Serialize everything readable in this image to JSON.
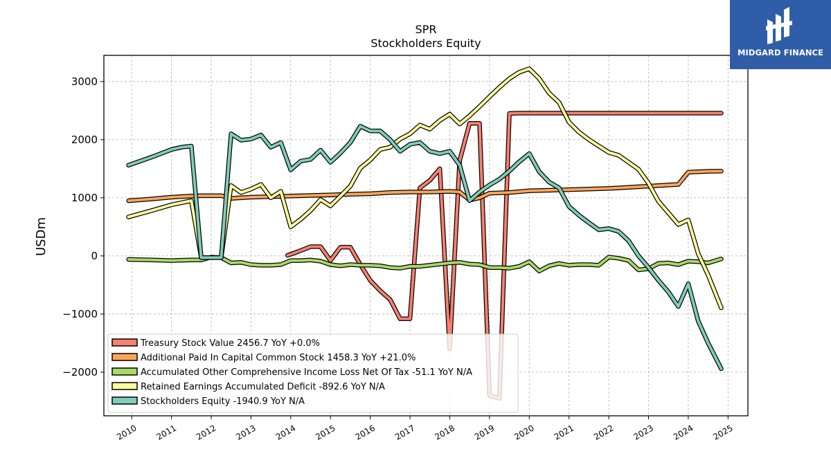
{
  "chart_data": {
    "type": "line",
    "title": "SPR",
    "subtitle": "Stockholders  Equity",
    "ylabel": "USDm",
    "xlabel": "",
    "xlim": [
      2009.3,
      2025.5
    ],
    "ylim": [
      -2750,
      3450
    ],
    "xticks": [
      2010,
      2011,
      2012,
      2013,
      2014,
      2015,
      2016,
      2017,
      2018,
      2019,
      2020,
      2021,
      2022,
      2023,
      2024,
      2025
    ],
    "xtick_labels": [
      "2010",
      "2011",
      "2012",
      "2013",
      "2014",
      "2015",
      "2016",
      "2017",
      "2018",
      "2019",
      "2020",
      "2021",
      "2022",
      "2023",
      "2024",
      "2025"
    ],
    "yticks": [
      -2000,
      -1000,
      0,
      1000,
      2000,
      3000
    ],
    "ytick_labels": [
      "−2000",
      "−1000",
      "0",
      "1000",
      "2000",
      "3000"
    ],
    "grid": true,
    "legend_position": "lower-left",
    "series": [
      {
        "name": "Treasury Stock Value",
        "legend": "Treasury Stock Value  2456.7 YoY +0.0%",
        "color": "#f8806f",
        "x": [
          2013.92,
          2014.17,
          2014.5,
          2014.75,
          2015.0,
          2015.25,
          2015.5,
          2015.75,
          2016.0,
          2016.25,
          2016.5,
          2016.75,
          2017.0,
          2017.25,
          2017.5,
          2017.75,
          2018.0,
          2018.25,
          2018.5,
          2018.75,
          2019.0,
          2019.25,
          2019.5,
          2019.75,
          2020.0,
          2020.5,
          2021.0,
          2021.5,
          2022.0,
          2022.5,
          2023.0,
          2023.5,
          2024.0,
          2024.5,
          2024.83
        ],
        "y": [
          10,
          70,
          160,
          160,
          -80,
          150,
          150,
          -150,
          -420,
          -600,
          -750,
          -1080,
          -1080,
          1170,
          1300,
          1500,
          -1600,
          1640,
          2280,
          2280,
          -2400,
          -2450,
          2450,
          2456,
          2456,
          2456,
          2456,
          2456,
          2456,
          2456,
          2456,
          2456,
          2456,
          2456,
          2456.7
        ]
      },
      {
        "name": "Additional Paid In Capital Common Stock",
        "legend": "Additional Paid In Capital Common Stock  1458.3 YoY +21.0%",
        "color": "#f9a65a",
        "x": [
          2009.92,
          2010.5,
          2011.0,
          2011.5,
          2011.75,
          2012.0,
          2012.25,
          2012.5,
          2013.0,
          2013.5,
          2014.0,
          2014.5,
          2015.0,
          2015.5,
          2016.0,
          2016.5,
          2017.0,
          2017.5,
          2018.0,
          2018.25,
          2018.5,
          2018.75,
          2019.0,
          2019.5,
          2020.0,
          2020.5,
          2021.0,
          2021.5,
          2022.0,
          2022.5,
          2023.0,
          2023.5,
          2023.75,
          2024.0,
          2024.5,
          2024.83
        ],
        "y": [
          950,
          980,
          1010,
          1030,
          1035,
          1035,
          1035,
          990,
          1010,
          1020,
          1030,
          1040,
          1050,
          1060,
          1070,
          1090,
          1100,
          1100,
          1110,
          1100,
          960,
          1000,
          1080,
          1090,
          1120,
          1130,
          1140,
          1150,
          1160,
          1180,
          1200,
          1220,
          1230,
          1440,
          1455,
          1458.3
        ]
      },
      {
        "name": "Accumulated Other Comprehensive Income Loss Net Of Tax",
        "legend": "Accumulated Other Comprehensive Income Loss Net Of Tax  -51.1 YoY N/A",
        "color": "#a8d968",
        "x": [
          2009.92,
          2010.5,
          2011.0,
          2011.5,
          2011.75,
          2012.0,
          2012.25,
          2012.5,
          2012.75,
          2013.0,
          2013.25,
          2013.5,
          2013.75,
          2014.0,
          2014.25,
          2014.5,
          2014.75,
          2015.0,
          2015.25,
          2015.5,
          2015.75,
          2016.0,
          2016.25,
          2016.5,
          2016.75,
          2017.0,
          2017.25,
          2017.5,
          2017.75,
          2018.0,
          2018.25,
          2018.5,
          2018.75,
          2019.0,
          2019.25,
          2019.5,
          2019.75,
          2020.0,
          2020.25,
          2020.5,
          2020.75,
          2021.0,
          2021.25,
          2021.5,
          2021.75,
          2022.0,
          2022.25,
          2022.5,
          2022.75,
          2023.0,
          2023.25,
          2023.5,
          2023.75,
          2024.0,
          2024.25,
          2024.5,
          2024.83
        ],
        "y": [
          -60,
          -70,
          -80,
          -70,
          -70,
          -20,
          -30,
          -120,
          -110,
          -150,
          -160,
          -160,
          -150,
          -80,
          -80,
          -70,
          -90,
          -150,
          -170,
          -150,
          -160,
          -160,
          -170,
          -200,
          -210,
          -180,
          -180,
          -160,
          -140,
          -120,
          -110,
          -140,
          -150,
          -200,
          -200,
          -210,
          -180,
          -100,
          -260,
          -170,
          -130,
          -160,
          -150,
          -150,
          -160,
          -20,
          -40,
          -80,
          -240,
          -220,
          -130,
          -120,
          -150,
          -90,
          -100,
          -120,
          -51.1
        ]
      },
      {
        "name": "Retained Earnings Accumulated Deficit",
        "legend": "Retained Earnings Accumulated Deficit  -892.6 YoY N/A",
        "color": "#fdfa9e",
        "x": [
          2009.92,
          2010.5,
          2011.0,
          2011.5,
          2011.75,
          2012.0,
          2012.25,
          2012.5,
          2012.75,
          2013.0,
          2013.25,
          2013.5,
          2013.75,
          2014.0,
          2014.25,
          2014.5,
          2014.75,
          2015.0,
          2015.25,
          2015.5,
          2015.75,
          2016.0,
          2016.25,
          2016.5,
          2016.75,
          2017.0,
          2017.25,
          2017.5,
          2017.75,
          2018.0,
          2018.25,
          2018.5,
          2018.75,
          2019.0,
          2019.25,
          2019.5,
          2019.75,
          2020.0,
          2020.25,
          2020.5,
          2020.75,
          2021.0,
          2021.25,
          2021.5,
          2021.75,
          2022.0,
          2022.25,
          2022.5,
          2022.75,
          2023.0,
          2023.25,
          2023.5,
          2023.75,
          2024.0,
          2024.25,
          2024.5,
          2024.83
        ],
        "y": [
          670,
          780,
          880,
          950,
          -30,
          -30,
          -30,
          1210,
          1090,
          1150,
          1230,
          1000,
          1110,
          500,
          630,
          780,
          970,
          860,
          1030,
          1200,
          1510,
          1650,
          1830,
          1870,
          2010,
          2100,
          2250,
          2180,
          2330,
          2440,
          2270,
          2410,
          2570,
          2740,
          2900,
          3050,
          3160,
          3220,
          3050,
          2800,
          2640,
          2300,
          2130,
          2000,
          1890,
          1780,
          1730,
          1610,
          1490,
          1250,
          940,
          740,
          540,
          620,
          40,
          -330,
          -892.6
        ]
      },
      {
        "name": "Stockholders Equity",
        "legend": "Stockholders Equity  -1940.9 YoY N/A",
        "color": "#7fcdbb",
        "x": [
          2009.92,
          2010.5,
          2011.0,
          2011.25,
          2011.5,
          2011.75,
          2012.0,
          2012.25,
          2012.5,
          2012.75,
          2013.0,
          2013.25,
          2013.5,
          2013.75,
          2014.0,
          2014.25,
          2014.5,
          2014.75,
          2015.0,
          2015.25,
          2015.5,
          2015.75,
          2016.0,
          2016.25,
          2016.5,
          2016.75,
          2017.0,
          2017.25,
          2017.5,
          2017.75,
          2018.0,
          2018.25,
          2018.5,
          2018.75,
          2019.0,
          2019.25,
          2019.5,
          2019.75,
          2020.0,
          2020.25,
          2020.5,
          2020.75,
          2021.0,
          2021.25,
          2021.5,
          2021.75,
          2022.0,
          2022.25,
          2022.5,
          2022.75,
          2023.0,
          2023.25,
          2023.5,
          2023.75,
          2024.0,
          2024.25,
          2024.5,
          2024.83
        ],
        "y": [
          1560,
          1700,
          1830,
          1870,
          1890,
          -30,
          -30,
          -30,
          2100,
          1990,
          2010,
          2080,
          1870,
          1950,
          1480,
          1630,
          1660,
          1820,
          1610,
          1770,
          1950,
          2230,
          2150,
          2150,
          2000,
          1800,
          1920,
          1950,
          1800,
          1760,
          1800,
          1560,
          950,
          1100,
          1220,
          1320,
          1460,
          1620,
          1760,
          1450,
          1270,
          1170,
          850,
          700,
          570,
          450,
          470,
          420,
          260,
          0,
          -200,
          -420,
          -620,
          -870,
          -480,
          -1120,
          -1500,
          -1940.9
        ]
      }
    ]
  },
  "logo": {
    "text": "MIDGARD FINANCE",
    "background": "#2f5da8",
    "text_color": "#ffffff"
  }
}
